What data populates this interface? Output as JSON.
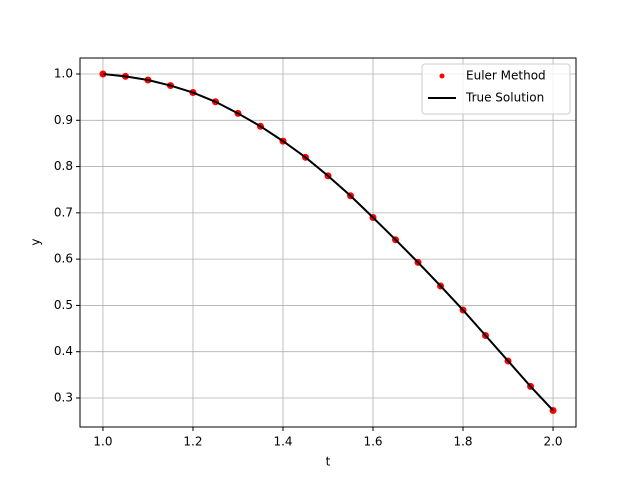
{
  "chart_data": {
    "type": "line",
    "xlabel": "t",
    "ylabel": "y",
    "x": [
      1.0,
      1.05,
      1.1,
      1.15,
      1.2,
      1.25,
      1.3,
      1.35,
      1.4,
      1.45,
      1.5,
      1.55,
      1.6,
      1.65,
      1.7,
      1.75,
      1.8,
      1.85,
      1.9,
      1.95,
      2.0
    ],
    "series": [
      {
        "name": "Euler Method",
        "color": "#ff0000",
        "marker": "dot",
        "values": [
          1.0,
          0.995,
          0.987,
          0.975,
          0.96,
          0.94,
          0.915,
          0.887,
          0.855,
          0.82,
          0.78,
          0.737,
          0.69,
          0.642,
          0.593,
          0.542,
          0.49,
          0.435,
          0.38,
          0.325,
          0.273
        ]
      },
      {
        "name": "True Solution",
        "color": "#000000",
        "marker": "line",
        "values": [
          1.0,
          0.995,
          0.987,
          0.975,
          0.96,
          0.94,
          0.915,
          0.887,
          0.855,
          0.82,
          0.78,
          0.737,
          0.69,
          0.642,
          0.593,
          0.542,
          0.49,
          0.435,
          0.38,
          0.325,
          0.273
        ]
      }
    ],
    "xlim": [
      0.949,
      2.051
    ],
    "ylim": [
      0.2373,
      1.0346
    ],
    "xticks": [
      {
        "value": 1.0,
        "label": "1.0"
      },
      1.2,
      1.4,
      1.6,
      1.8,
      {
        "value": 2.0,
        "label": "2.0"
      }
    ],
    "yticks": [
      0.3,
      0.4,
      0.5,
      0.6,
      0.7,
      0.8,
      0.9,
      {
        "value": 1.0,
        "label": "1.0"
      }
    ],
    "grid": true,
    "legend": "upper right"
  }
}
